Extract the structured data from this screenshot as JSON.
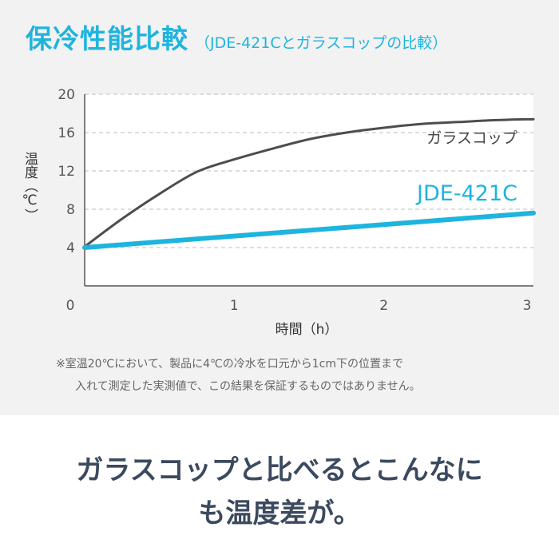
{
  "header": {
    "title": "保冷性能比較",
    "subtitle": "（JDE-421Cとガラスコップの比較）"
  },
  "chart_data": {
    "type": "line",
    "xlabel": "時間（h）",
    "ylabel": "温度（℃）",
    "xlim": [
      0,
      3
    ],
    "ylim": [
      0,
      20
    ],
    "x_ticks": [
      "0",
      "1",
      "2",
      "3"
    ],
    "y_ticks": [
      "4",
      "8",
      "12",
      "16",
      "20"
    ],
    "grid": "horizontal dashed",
    "series": [
      {
        "name": "ガラスコップ",
        "color": "#4d4d4d",
        "x": [
          0,
          0.25,
          0.5,
          0.75,
          1.0,
          1.25,
          1.5,
          1.75,
          2.0,
          2.25,
          2.5,
          2.75,
          3.0
        ],
        "y": [
          4.1,
          7.0,
          9.6,
          11.9,
          13.2,
          14.3,
          15.3,
          16.0,
          16.5,
          16.9,
          17.1,
          17.3,
          17.4
        ]
      },
      {
        "name": "JDE-421C",
        "color": "#1fb4dd",
        "x": [
          0,
          1,
          2,
          3
        ],
        "y": [
          4.0,
          5.2,
          6.4,
          7.6
        ]
      }
    ]
  },
  "note": {
    "line1": "※室温20℃において、製品に4℃の冷水を口元から1cm下の位置まで",
    "line2": "入れて測定した実測値で、この結果を保証するものではありません。"
  },
  "tagline": {
    "line1": "ガラスコップと比べるとこんなに",
    "line2": "も温度差が。"
  }
}
